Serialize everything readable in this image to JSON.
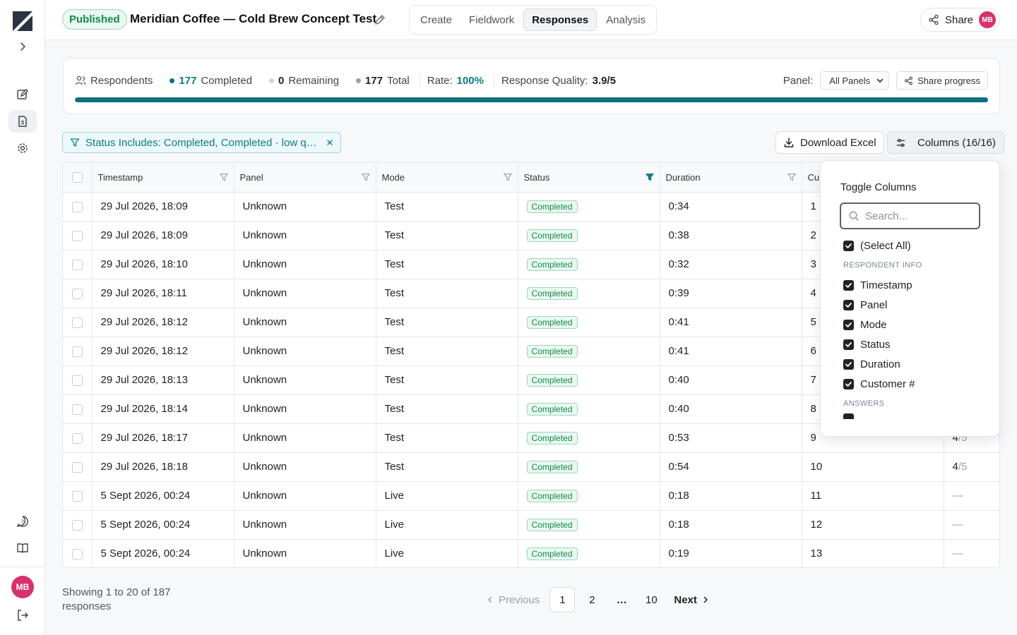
{
  "header": {
    "status_badge": "Published",
    "survey_title": "Meridian Coffee — Cold Brew Concept Test",
    "tabs": [
      {
        "label": "Create",
        "active": false
      },
      {
        "label": "Fieldwork",
        "active": false
      },
      {
        "label": "Responses",
        "active": true
      },
      {
        "label": "Analysis",
        "active": false
      }
    ],
    "share_label": "Share",
    "user_initials": "MB"
  },
  "sidebar": {
    "icons": [
      "logo-icon",
      "expand-icon",
      "edit-icon",
      "responses-icon",
      "settings-icon",
      "help-icon",
      "book-icon",
      "logout-icon"
    ],
    "user_initials": "MB"
  },
  "progress": {
    "respondents_label": "Respondents",
    "completed_count": "177",
    "completed_label": "Completed",
    "remaining_count": "0",
    "remaining_label": "Remaining",
    "total_count": "177",
    "total_label": "Total",
    "rate_label": "Rate:",
    "rate_value": "100%",
    "quality_label": "Response Quality:",
    "quality_value": "3.9/5",
    "panel_label": "Panel:",
    "panel_value": "All Panels",
    "share_progress_label": "Share progress",
    "fill_percent": 100,
    "colors": {
      "completed": "#0e6f7e",
      "remaining": "#cfd4da",
      "total": "#9aa0a6"
    }
  },
  "toolbar": {
    "filter_chip": "Status Includes: Completed, Completed · low quality",
    "download_label": "Download Excel",
    "columns_label": "Columns (16/16)"
  },
  "table": {
    "columns": [
      "Timestamp",
      "Panel",
      "Mode",
      "Status",
      "Duration",
      "Cu"
    ],
    "rows": [
      {
        "timestamp": "29 Jul 2026, 18:09",
        "panel": "Unknown",
        "mode": "Test",
        "status": "Completed",
        "duration": "0:34",
        "customer": "1",
        "score": "",
        "score_den": ""
      },
      {
        "timestamp": "29 Jul 2026, 18:09",
        "panel": "Unknown",
        "mode": "Test",
        "status": "Completed",
        "duration": "0:38",
        "customer": "2",
        "score": "",
        "score_den": ""
      },
      {
        "timestamp": "29 Jul 2026, 18:10",
        "panel": "Unknown",
        "mode": "Test",
        "status": "Completed",
        "duration": "0:32",
        "customer": "3",
        "score": "",
        "score_den": ""
      },
      {
        "timestamp": "29 Jul 2026, 18:11",
        "panel": "Unknown",
        "mode": "Test",
        "status": "Completed",
        "duration": "0:39",
        "customer": "4",
        "score": "",
        "score_den": ""
      },
      {
        "timestamp": "29 Jul 2026, 18:12",
        "panel": "Unknown",
        "mode": "Test",
        "status": "Completed",
        "duration": "0:41",
        "customer": "5",
        "score": "",
        "score_den": ""
      },
      {
        "timestamp": "29 Jul 2026, 18:12",
        "panel": "Unknown",
        "mode": "Test",
        "status": "Completed",
        "duration": "0:41",
        "customer": "6",
        "score": "",
        "score_den": ""
      },
      {
        "timestamp": "29 Jul 2026, 18:13",
        "panel": "Unknown",
        "mode": "Test",
        "status": "Completed",
        "duration": "0:40",
        "customer": "7",
        "score": "",
        "score_den": ""
      },
      {
        "timestamp": "29 Jul 2026, 18:14",
        "panel": "Unknown",
        "mode": "Test",
        "status": "Completed",
        "duration": "0:40",
        "customer": "8",
        "score": "",
        "score_den": ""
      },
      {
        "timestamp": "29 Jul 2026, 18:17",
        "panel": "Unknown",
        "mode": "Test",
        "status": "Completed",
        "duration": "0:53",
        "customer": "9",
        "score": "4",
        "score_den": "/5"
      },
      {
        "timestamp": "29 Jul 2026, 18:18",
        "panel": "Unknown",
        "mode": "Test",
        "status": "Completed",
        "duration": "0:54",
        "customer": "10",
        "score": "4",
        "score_den": "/5"
      },
      {
        "timestamp": "5 Sept 2026, 00:24",
        "panel": "Unknown",
        "mode": "Live",
        "status": "Completed",
        "duration": "0:18",
        "customer": "11",
        "score": "—",
        "score_den": ""
      },
      {
        "timestamp": "5 Sept 2026, 00:24",
        "panel": "Unknown",
        "mode": "Live",
        "status": "Completed",
        "duration": "0:18",
        "customer": "12",
        "score": "—",
        "score_den": ""
      },
      {
        "timestamp": "5 Sept 2026, 00:24",
        "panel": "Unknown",
        "mode": "Live",
        "status": "Completed",
        "duration": "0:19",
        "customer": "13",
        "score": "—",
        "score_den": ""
      }
    ]
  },
  "columns_popover": {
    "title": "Toggle Columns",
    "search_placeholder": "Search...",
    "select_all": "(Select All)",
    "section_respondent": "RESPONDENT INFO",
    "items": [
      "Timestamp",
      "Panel",
      "Mode",
      "Status",
      "Duration",
      "Customer #"
    ],
    "section_answers": "ANSWERS"
  },
  "pagination": {
    "showing": "Showing 1 to 20 of 187 responses",
    "previous": "Previous",
    "pages": [
      "1",
      "2",
      "…",
      "10"
    ],
    "current": "1",
    "next": "Next"
  }
}
